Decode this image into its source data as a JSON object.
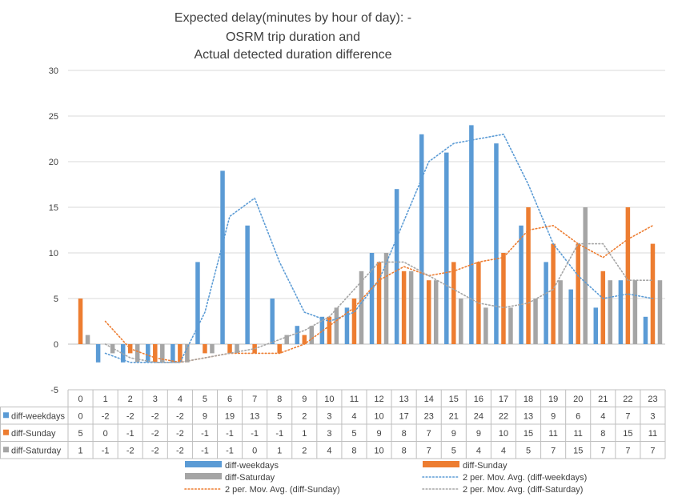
{
  "chart_data": {
    "type": "bar",
    "title": [
      "Expected delay(minutes by hour of day): -",
      "OSRM trip duration and",
      "Actual detected duration difference"
    ],
    "categories": [
      "0",
      "1",
      "2",
      "3",
      "4",
      "5",
      "6",
      "7",
      "8",
      "9",
      "10",
      "11",
      "12",
      "13",
      "14",
      "15",
      "16",
      "17",
      "18",
      "19",
      "20",
      "21",
      "22",
      "23"
    ],
    "ylim": [
      -5,
      30
    ],
    "yticks": [
      -5,
      0,
      5,
      10,
      15,
      20,
      25,
      30
    ],
    "grid": true,
    "data_table": true,
    "legend_position": "bottom",
    "series": [
      {
        "name": "diff-weekdays",
        "color": "#5B9BD5",
        "values": [
          0,
          -2,
          -2,
          -2,
          -2,
          9,
          19,
          13,
          5,
          2,
          3,
          4,
          10,
          17,
          23,
          21,
          24,
          22,
          13,
          9,
          6,
          4,
          7,
          3
        ]
      },
      {
        "name": "diff-Sunday",
        "color": "#ED7D31",
        "values": [
          5,
          0,
          -1,
          -2,
          -2,
          -1,
          -1,
          -1,
          -1,
          1,
          3,
          5,
          9,
          8,
          7,
          9,
          9,
          10,
          15,
          11,
          11,
          8,
          15,
          11
        ]
      },
      {
        "name": "diff-Saturday",
        "color": "#A5A5A5",
        "values": [
          1,
          -1,
          -2,
          -2,
          -2,
          -1,
          -1,
          0,
          1,
          2,
          4,
          8,
          10,
          8,
          7,
          5,
          4,
          4,
          5,
          7,
          15,
          7,
          7,
          7
        ]
      }
    ],
    "trendlines": [
      {
        "name": "2 per. Mov. Avg. (diff-weekdays)",
        "of": "diff-weekdays",
        "period": 2,
        "color": "#5B9BD5"
      },
      {
        "name": "2 per. Mov. Avg. (diff-Sunday)",
        "of": "diff-Sunday",
        "period": 2,
        "color": "#ED7D31"
      },
      {
        "name": "2 per. Mov. Avg. (diff-Saturday)",
        "of": "diff-Saturday",
        "period": 2,
        "color": "#A5A5A5"
      }
    ]
  }
}
